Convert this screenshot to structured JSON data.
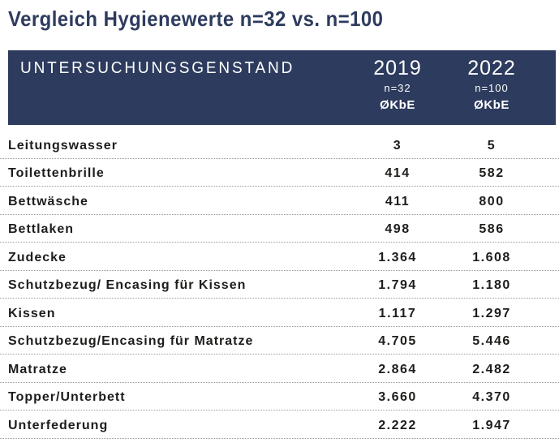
{
  "page_title": "Vergleich Hygienewerte n=32 vs. n=100",
  "colors": {
    "navy": "#2d3b5e",
    "header_text": "#ffffff",
    "row_text": "#1d1d1b",
    "dotted_line": "#999999",
    "background": "#ffffff"
  },
  "table": {
    "header": {
      "object_label": "UNTERSUCHUNGSGENSTAND",
      "columns": [
        {
          "year": "2019",
          "n": "n=32",
          "unit": "ØKbE"
        },
        {
          "year": "2022",
          "n": "n=100",
          "unit": "ØKbE"
        }
      ]
    },
    "rows": [
      {
        "label": "Leitungswasser",
        "v2019": "3",
        "v2022": "5"
      },
      {
        "label": "Toilettenbrille",
        "v2019": "414",
        "v2022": "582"
      },
      {
        "label": "Bettwäsche",
        "v2019": "411",
        "v2022": "800"
      },
      {
        "label": "Bettlaken",
        "v2019": "498",
        "v2022": "586"
      },
      {
        "label": "Zudecke",
        "v2019": "1.364",
        "v2022": "1.608"
      },
      {
        "label": "Schutzbezug/ Encasing für Kissen",
        "v2019": "1.794",
        "v2022": "1.180"
      },
      {
        "label": "Kissen",
        "v2019": "1.117",
        "v2022": "1.297"
      },
      {
        "label": "Schutzbezug/Encasing für Matratze",
        "v2019": "4.705",
        "v2022": "5.446"
      },
      {
        "label": "Matratze",
        "v2019": "2.864",
        "v2022": "2.482"
      },
      {
        "label": "Topper/Unterbett",
        "v2019": "3.660",
        "v2022": "4.370"
      },
      {
        "label": "Unterfederung",
        "v2019": "2.222",
        "v2022": "1.947"
      }
    ]
  },
  "chart_data": {
    "type": "table",
    "title": "Vergleich Hygienewerte n=32 vs. n=100",
    "columns": [
      "UNTERSUCHUNGSGENSTAND",
      "2019 (n=32) ØKbE",
      "2022 (n=100) ØKbE"
    ],
    "categories": [
      "Leitungswasser",
      "Toilettenbrille",
      "Bettwäsche",
      "Bettlaken",
      "Zudecke",
      "Schutzbezug/ Encasing für Kissen",
      "Kissen",
      "Schutzbezug/Encasing für Matratze",
      "Matratze",
      "Topper/Unterbett",
      "Unterfederung"
    ],
    "series": [
      {
        "name": "2019 (n=32) ØKbE",
        "values": [
          3,
          414,
          411,
          498,
          1364,
          1794,
          1117,
          4705,
          2864,
          3660,
          2222
        ]
      },
      {
        "name": "2022 (n=100) ØKbE",
        "values": [
          5,
          582,
          800,
          586,
          1608,
          1180,
          1297,
          5446,
          2482,
          4370,
          1947
        ]
      }
    ],
    "layout": {
      "grid": "dotted row separators",
      "legend_position": "none",
      "value_alignment": "centered columns"
    }
  }
}
